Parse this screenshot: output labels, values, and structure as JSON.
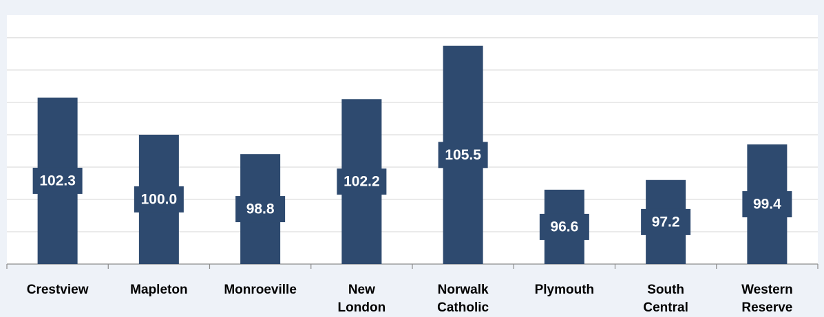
{
  "chart_data": {
    "type": "bar",
    "categories": [
      "Crestview",
      "Mapleton",
      "Monroeville",
      "New London",
      "Norwalk Catholic",
      "Plymouth",
      "South Central",
      "Western Reserve"
    ],
    "values": [
      102.3,
      100.0,
      98.8,
      102.2,
      105.5,
      96.6,
      97.2,
      99.4
    ],
    "value_labels": [
      "102.3",
      "100.0",
      "98.8",
      "102.2",
      "105.5",
      "96.6",
      "97.2",
      "99.4"
    ],
    "color": "#2e4a6f",
    "ylim": [
      92,
      107.4
    ],
    "yticks": [
      92,
      94,
      96,
      98,
      100,
      102,
      104,
      106
    ],
    "grid": true,
    "show_tick_labels": false
  }
}
